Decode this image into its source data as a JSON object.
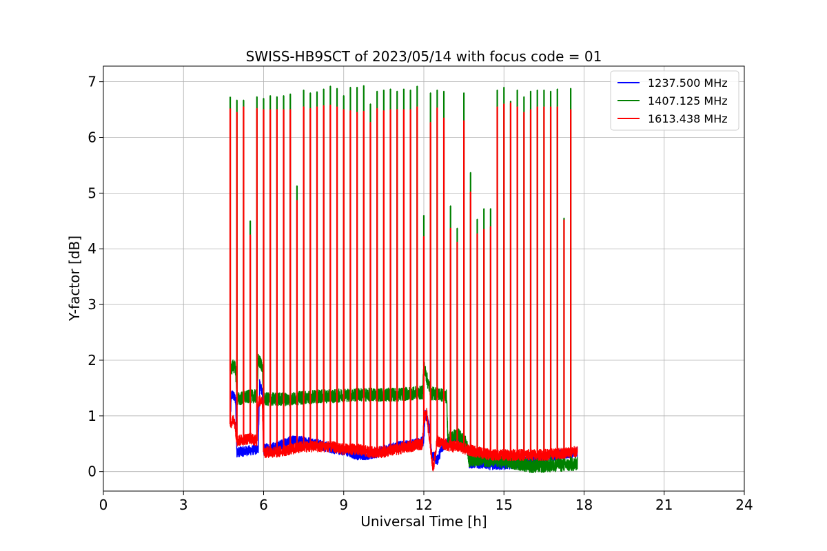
{
  "chart_data": {
    "type": "line",
    "title": "SWISS-HB9SCT of 2023/05/14 with focus code = 01",
    "xlabel": "Universal Time [h]",
    "ylabel": "Y-factor [dB]",
    "xlim": [
      0,
      24
    ],
    "ylim": [
      -0.35,
      7.28
    ],
    "x_ticks": [
      0,
      3,
      6,
      9,
      12,
      15,
      18,
      21,
      24
    ],
    "y_ticks": [
      0,
      1,
      2,
      3,
      4,
      5,
      6,
      7
    ],
    "grid": true,
    "legend_position": "top-right",
    "x_start": 4.75,
    "x_end": 17.75,
    "series": [
      {
        "name": "1237.500 MHz",
        "color": "#0000ff",
        "baseline": [
          [
            4.75,
            0.9
          ],
          [
            4.8,
            1.4
          ],
          [
            4.95,
            1.3
          ],
          [
            5.0,
            0.35
          ],
          [
            5.5,
            0.38
          ],
          [
            5.8,
            0.4
          ],
          [
            5.85,
            1.6
          ],
          [
            5.95,
            1.4
          ],
          [
            6.0,
            0.4
          ],
          [
            6.5,
            0.45
          ],
          [
            7.0,
            0.55
          ],
          [
            7.5,
            0.55
          ],
          [
            8.0,
            0.5
          ],
          [
            8.5,
            0.42
          ],
          [
            9.0,
            0.38
          ],
          [
            9.5,
            0.3
          ],
          [
            10.0,
            0.3
          ],
          [
            10.5,
            0.38
          ],
          [
            11.0,
            0.45
          ],
          [
            11.5,
            0.48
          ],
          [
            12.0,
            0.55
          ],
          [
            12.05,
            1.05
          ],
          [
            12.2,
            0.8
          ],
          [
            12.3,
            0.3
          ],
          [
            12.5,
            0.2
          ],
          [
            12.7,
            0.45
          ],
          [
            13.0,
            0.55
          ],
          [
            13.3,
            0.65
          ],
          [
            13.6,
            0.45
          ],
          [
            13.7,
            0.15
          ],
          [
            14.0,
            0.15
          ],
          [
            14.5,
            0.12
          ],
          [
            15.0,
            0.12
          ],
          [
            15.5,
            0.15
          ],
          [
            16.0,
            0.2
          ],
          [
            16.5,
            0.25
          ],
          [
            17.0,
            0.3
          ],
          [
            17.5,
            0.32
          ],
          [
            17.75,
            0.35
          ]
        ],
        "noise": 0.09
      },
      {
        "name": "1407.125 MHz",
        "color": "#008000",
        "baseline": [
          [
            4.75,
            1.8
          ],
          [
            4.85,
            1.9
          ],
          [
            4.95,
            1.85
          ],
          [
            5.0,
            1.3
          ],
          [
            5.5,
            1.35
          ],
          [
            5.75,
            1.35
          ],
          [
            5.8,
            2.0
          ],
          [
            5.95,
            1.9
          ],
          [
            6.0,
            1.3
          ],
          [
            6.5,
            1.3
          ],
          [
            7.0,
            1.3
          ],
          [
            7.5,
            1.33
          ],
          [
            8.0,
            1.35
          ],
          [
            8.5,
            1.35
          ],
          [
            9.0,
            1.37
          ],
          [
            9.5,
            1.38
          ],
          [
            10.0,
            1.38
          ],
          [
            10.5,
            1.38
          ],
          [
            11.0,
            1.38
          ],
          [
            11.5,
            1.4
          ],
          [
            11.95,
            1.42
          ],
          [
            12.0,
            1.9
          ],
          [
            12.15,
            1.6
          ],
          [
            12.3,
            1.4
          ],
          [
            12.5,
            1.4
          ],
          [
            12.85,
            1.35
          ],
          [
            12.9,
            0.6
          ],
          [
            13.3,
            0.65
          ],
          [
            13.6,
            0.5
          ],
          [
            13.7,
            0.2
          ],
          [
            14.0,
            0.22
          ],
          [
            14.5,
            0.2
          ],
          [
            15.0,
            0.18
          ],
          [
            15.5,
            0.15
          ],
          [
            16.0,
            0.1
          ],
          [
            16.5,
            0.1
          ],
          [
            17.0,
            0.12
          ],
          [
            17.5,
            0.12
          ],
          [
            17.75,
            0.15
          ]
        ],
        "noise": 0.12,
        "spikes": [
          [
            4.75,
            6.73
          ],
          [
            5.0,
            6.67
          ],
          [
            5.25,
            6.67
          ],
          [
            5.5,
            4.5
          ],
          [
            5.75,
            6.73
          ],
          [
            6.0,
            6.7
          ],
          [
            6.25,
            6.75
          ],
          [
            6.5,
            6.73
          ],
          [
            6.75,
            6.75
          ],
          [
            7.0,
            6.78
          ],
          [
            7.25,
            5.13
          ],
          [
            7.5,
            6.85
          ],
          [
            7.75,
            6.8
          ],
          [
            8.0,
            6.82
          ],
          [
            8.25,
            6.87
          ],
          [
            8.5,
            6.92
          ],
          [
            8.75,
            6.88
          ],
          [
            9.0,
            6.75
          ],
          [
            9.25,
            6.9
          ],
          [
            9.5,
            6.9
          ],
          [
            9.75,
            6.93
          ],
          [
            10.0,
            6.6
          ],
          [
            10.25,
            6.83
          ],
          [
            10.5,
            6.85
          ],
          [
            10.75,
            6.87
          ],
          [
            11.0,
            6.83
          ],
          [
            11.25,
            6.87
          ],
          [
            11.5,
            6.85
          ],
          [
            11.75,
            6.92
          ],
          [
            12.0,
            4.6
          ],
          [
            12.25,
            6.8
          ],
          [
            12.5,
            6.85
          ],
          [
            12.75,
            6.83
          ],
          [
            13.0,
            4.77
          ],
          [
            13.25,
            4.37
          ],
          [
            13.5,
            6.8
          ],
          [
            13.75,
            5.37
          ],
          [
            14.0,
            4.53
          ],
          [
            14.25,
            4.72
          ],
          [
            14.5,
            4.72
          ],
          [
            14.75,
            6.85
          ],
          [
            15.0,
            6.9
          ],
          [
            15.25,
            6.65
          ],
          [
            15.5,
            6.85
          ],
          [
            15.75,
            6.73
          ],
          [
            16.0,
            6.83
          ],
          [
            16.25,
            6.85
          ],
          [
            16.5,
            6.85
          ],
          [
            16.75,
            6.83
          ],
          [
            17.0,
            6.87
          ],
          [
            17.25,
            4.55
          ],
          [
            17.5,
            6.88
          ]
        ]
      },
      {
        "name": "1613.438 MHz",
        "color": "#ff0000",
        "baseline": [
          [
            4.75,
            0.85
          ],
          [
            4.9,
            0.95
          ],
          [
            5.0,
            0.55
          ],
          [
            5.5,
            0.6
          ],
          [
            5.75,
            0.55
          ],
          [
            5.8,
            1.25
          ],
          [
            5.95,
            1.3
          ],
          [
            6.0,
            0.35
          ],
          [
            6.5,
            0.35
          ],
          [
            7.0,
            0.4
          ],
          [
            7.5,
            0.45
          ],
          [
            8.0,
            0.45
          ],
          [
            8.5,
            0.45
          ],
          [
            9.0,
            0.4
          ],
          [
            9.5,
            0.4
          ],
          [
            10.0,
            0.35
          ],
          [
            10.5,
            0.35
          ],
          [
            11.0,
            0.4
          ],
          [
            11.5,
            0.45
          ],
          [
            11.95,
            0.5
          ],
          [
            12.0,
            0.9
          ],
          [
            12.1,
            1.1
          ],
          [
            12.2,
            0.6
          ],
          [
            12.35,
            0.05
          ],
          [
            12.5,
            0.55
          ],
          [
            13.0,
            0.45
          ],
          [
            13.3,
            0.45
          ],
          [
            13.6,
            0.4
          ],
          [
            14.0,
            0.35
          ],
          [
            14.5,
            0.3
          ],
          [
            15.0,
            0.3
          ],
          [
            15.5,
            0.3
          ],
          [
            16.0,
            0.3
          ],
          [
            16.5,
            0.3
          ],
          [
            17.0,
            0.32
          ],
          [
            17.5,
            0.35
          ],
          [
            17.75,
            0.35
          ]
        ],
        "noise": 0.1,
        "spikes": [
          [
            4.75,
            6.52
          ],
          [
            5.0,
            6.45
          ],
          [
            5.25,
            6.55
          ],
          [
            5.5,
            4.25
          ],
          [
            5.75,
            6.52
          ],
          [
            6.0,
            6.5
          ],
          [
            6.25,
            6.5
          ],
          [
            6.5,
            6.5
          ],
          [
            6.75,
            6.5
          ],
          [
            7.0,
            6.5
          ],
          [
            7.25,
            4.87
          ],
          [
            7.5,
            6.55
          ],
          [
            7.75,
            6.52
          ],
          [
            8.0,
            6.55
          ],
          [
            8.25,
            6.57
          ],
          [
            8.5,
            6.58
          ],
          [
            8.75,
            6.55
          ],
          [
            9.0,
            6.5
          ],
          [
            9.25,
            6.48
          ],
          [
            9.5,
            6.45
          ],
          [
            9.75,
            6.47
          ],
          [
            10.0,
            6.27
          ],
          [
            10.25,
            6.52
          ],
          [
            10.5,
            6.48
          ],
          [
            10.75,
            6.5
          ],
          [
            11.0,
            6.5
          ],
          [
            11.25,
            6.5
          ],
          [
            11.5,
            6.5
          ],
          [
            11.75,
            6.55
          ],
          [
            12.0,
            4.22
          ],
          [
            12.25,
            6.27
          ],
          [
            12.5,
            6.53
          ],
          [
            12.75,
            6.35
          ],
          [
            13.0,
            4.37
          ],
          [
            13.25,
            4.12
          ],
          [
            13.5,
            6.3
          ],
          [
            13.75,
            5.02
          ],
          [
            14.0,
            4.27
          ],
          [
            14.25,
            4.35
          ],
          [
            14.5,
            4.4
          ],
          [
            14.75,
            6.55
          ],
          [
            15.0,
            6.6
          ],
          [
            15.25,
            6.62
          ],
          [
            15.5,
            6.55
          ],
          [
            15.75,
            6.45
          ],
          [
            16.0,
            6.5
          ],
          [
            16.25,
            6.55
          ],
          [
            16.5,
            6.55
          ],
          [
            16.75,
            6.55
          ],
          [
            17.0,
            6.55
          ],
          [
            17.25,
            4.52
          ],
          [
            17.5,
            6.5
          ]
        ]
      }
    ]
  }
}
